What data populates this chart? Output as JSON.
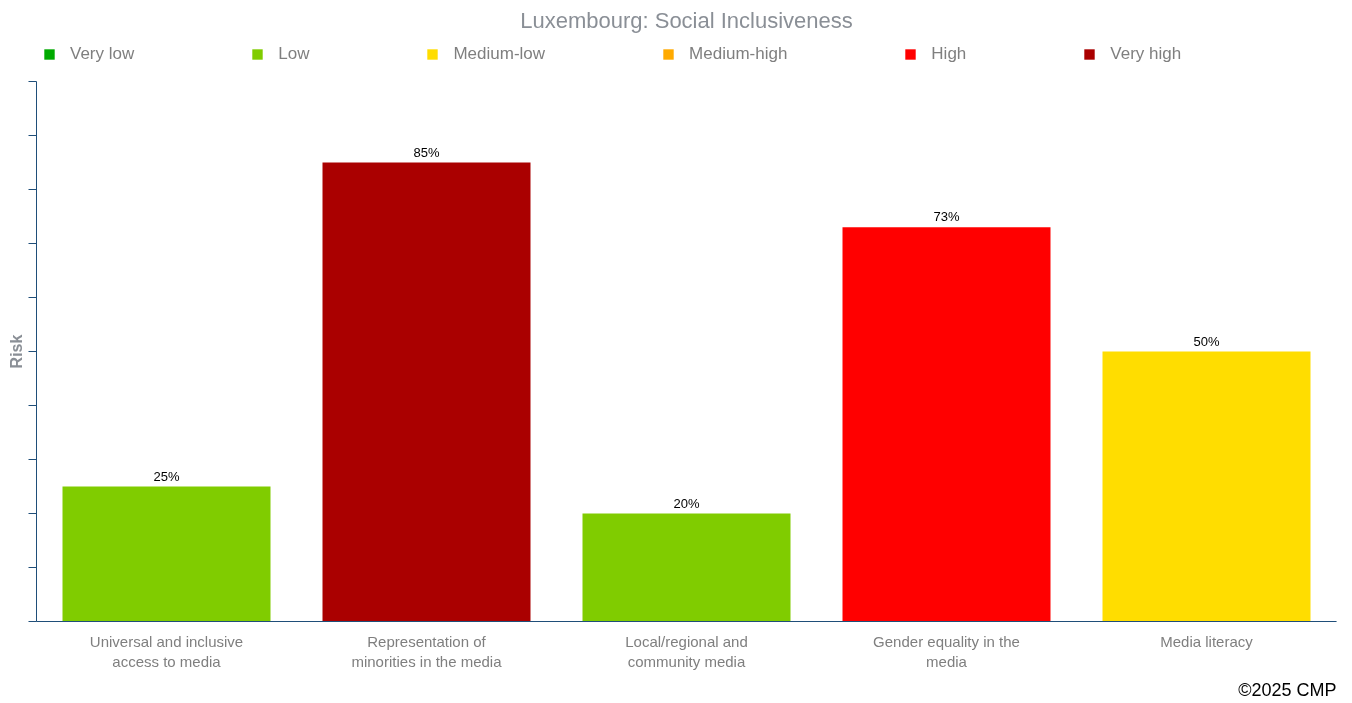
{
  "chart_data": {
    "type": "bar",
    "title": "Luxembourg: Social Inclusiveness",
    "ylabel": "Risk",
    "categories": [
      "Universal and inclusive access to media",
      "Representation of minorities in the media",
      "Local/regional and community media",
      "Gender equality in the media",
      "Media literacy"
    ],
    "stacked": true,
    "series": [
      {
        "name": "Very low",
        "color": "#00aa00",
        "values": [
          null,
          null,
          null,
          null,
          null
        ]
      },
      {
        "name": "Low",
        "color": "#80cc00",
        "values": [
          25,
          null,
          20,
          null,
          null
        ],
        "value_labels": [
          "25%",
          null,
          "20%",
          null,
          null
        ]
      },
      {
        "name": "Medium-low",
        "color": "#ffdd00",
        "values": [
          null,
          null,
          null,
          null,
          50
        ],
        "value_labels": [
          null,
          null,
          null,
          null,
          "50%"
        ]
      },
      {
        "name": "Medium-high",
        "color": "#ffaa00",
        "values": [
          null,
          null,
          null,
          null,
          null
        ]
      },
      {
        "name": "High",
        "color": "#ff0000",
        "values": [
          null,
          null,
          null,
          73,
          null
        ],
        "value_labels": [
          null,
          null,
          null,
          "73%",
          null
        ]
      },
      {
        "name": "Very high",
        "color": "#aa0000",
        "values": [
          null,
          85,
          null,
          null,
          null
        ],
        "value_labels": [
          null,
          "85%",
          null,
          null,
          null
        ]
      }
    ],
    "ylim": [
      0,
      100
    ],
    "yticks": [
      {
        "value": 0,
        "label": null
      },
      {
        "value": 10,
        "label": null
      },
      {
        "value": 20,
        "label": null
      },
      {
        "value": 30,
        "label": null
      },
      {
        "value": 40,
        "label": null
      },
      {
        "value": 50,
        "label": null
      },
      {
        "value": 60,
        "label": null
      },
      {
        "value": 70,
        "label": null
      },
      {
        "value": 80,
        "label": null
      },
      {
        "value": 90,
        "label": null
      },
      {
        "value": 100,
        "label": null
      }
    ],
    "tick_labels": "x",
    "grid": false,
    "legend": "top",
    "annotations": [
      "©2025 CMP"
    ]
  }
}
